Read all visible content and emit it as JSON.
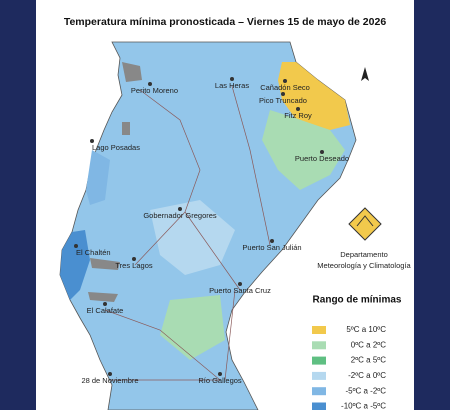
{
  "title": "Temperatura mínima pronosticada – Viernes 15 de mayo de 2026",
  "cities": [
    "Perito Moreno",
    "Las Heras",
    "Cañadón Seco",
    "Pico Truncado",
    "Fitz Roy",
    "Puerto Deseado",
    "Lago Posadas",
    "Gobernador Gregores",
    "Puerto San Julián",
    "El Chaltén",
    "Tres Lagos",
    "Puerto Santa Cruz",
    "El Calafate",
    "28 de Noviembre",
    "Río Gallegos"
  ],
  "organization": [
    "Departamento",
    "Meteorología y Climatología"
  ],
  "legend": {
    "title": "Rango de mínimas",
    "items": [
      {
        "label": "5ºC a 10ºC",
        "color": "#f2c94c"
      },
      {
        "label": "0ºC a 2ºC",
        "color": "#a9dcb3"
      },
      {
        "label": "2ºC a 5ºC",
        "color": "#5fbf82"
      },
      {
        "label": "-2ºC a 0ºC",
        "color": "#b5d8ef"
      },
      {
        "label": "-5ºC a -2ºC",
        "color": "#80b7e4"
      },
      {
        "label": "-10ºC a -5ºC",
        "color": "#4a8fd0"
      }
    ]
  }
}
